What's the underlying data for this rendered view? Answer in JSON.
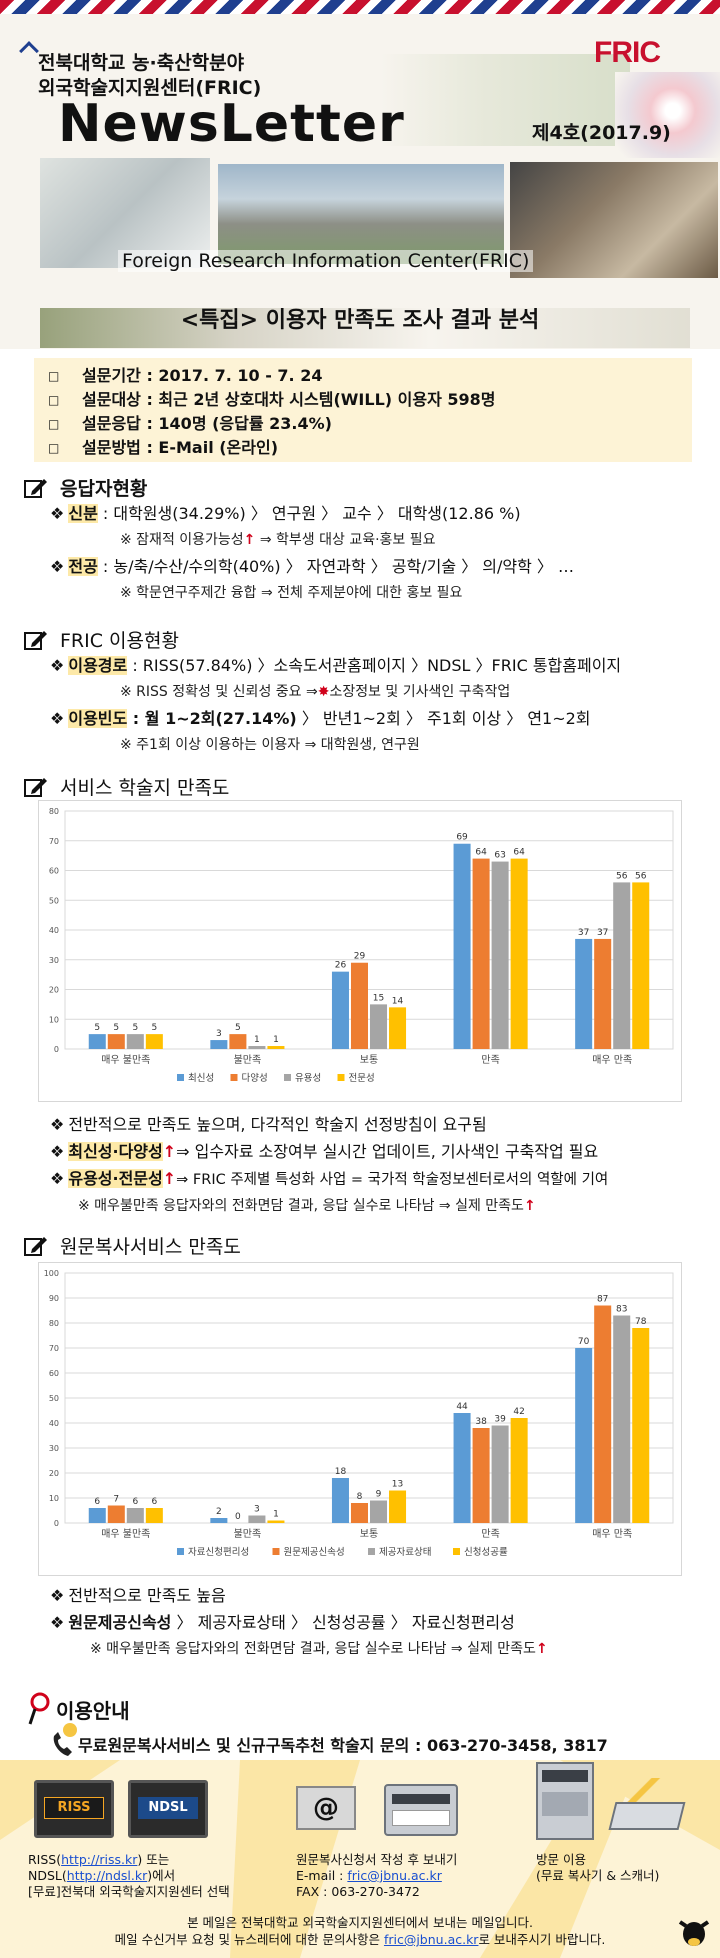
{
  "header": {
    "org_line1": "전북대학교 농·축산학분야",
    "org_line2": "외국학술지지원센터(FRIC)",
    "title": "NewsLetter",
    "issue": "제4호(2017.9)",
    "logo": "FRIC",
    "banner_en": "Foreign Research Information Center(FRIC)",
    "feature_title": "<특집> 이용자 만족도 조사 결과 분석"
  },
  "survey": {
    "items": [
      "설문기간 : 2017. 7. 10 - 7. 24",
      "설문대상 : 최근 2년 상호대차 시스템(WILL) 이용자 598명",
      "설문응답 : 140명 (응답률 23.4%)",
      "설문방법 : E-Mail (온라인)"
    ]
  },
  "respondents": {
    "title": "응답자현황",
    "r1_label": "신분",
    "r1_text": " : 대학원생(34.29%) 〉 연구원 〉 교수 〉 대학생(12.86 %)",
    "r1_note_a": "※ 잠재적 이용가능성",
    "r1_note_arrow": "↑",
    "r1_note_b": " ⇒ 학부생 대상 교육·홍보 필요",
    "r2_label": "전공",
    "r2_text": " : 농/축/수산/수의학(40%) 〉 자연과학 〉 공학/기술 〉 의/약학 〉 …",
    "r2_note": "※ 학문연구주제간 융합 ⇒ 전체 주제분야에 대한 홍보 필요"
  },
  "usage": {
    "title": "FRIC 이용현황",
    "u1_label": "이용경로",
    "u1_text": " : RISS(57.84%) 〉소속도서관홈페이지 〉NDSL 〉FRIC 통합홈페이지",
    "u1_note_a": "※ RISS 정확성 및 신뢰성 중요 ⇒",
    "u1_note_b": "소장정보 및 기사색인 구축작업",
    "u2_label": "이용빈도",
    "u2_text_bold": " : 월 1~2회(27.14%)",
    "u2_text": " 〉 반년1~2회 〉 주1회 이상 〉 연1~2회",
    "u2_note": "※ 주1회 이상 이용하는 이용자 ⇒ 대학원생, 연구원"
  },
  "journal_section": {
    "title": "서비스 학술지 만족도",
    "p1": "전반적으로 만족도 높으며, 다각적인 학술지 선정방침이 요구됨",
    "p2_label": "최신성·다양성",
    "p2_text": "⇒ 입수자료 소장여부 실시간 업데이트, 기사색인 구축작업 필요",
    "p3_label": "유용성·전문성",
    "p3_text": "⇒ FRIC 주제별 특성화 사업 = 국가적 학술정보센터로서의 역할에 기여",
    "p3_note": "※ 매우불만족 응답자와의 전화면담 결과, 응답 실수로 나타남 ⇒ 실제 만족도",
    "arrow": "↑"
  },
  "copy_section": {
    "title": "원문복사서비스 만족도",
    "p1": "전반적으로 만족도 높음",
    "p2_label": "원문제공신속성",
    "p2_text": " 〉 제공자료상태 〉 신청성공률 〉 자료신청편리성",
    "p2_note": "※ 매우불만족 응답자와의 전화면담 결과, 응답 실수로 나타남 ⇒ 실제 만족도",
    "arrow": "↑"
  },
  "chart_data": [
    {
      "type": "bar",
      "categories": [
        "매우 불만족",
        "불만족",
        "보통",
        "만족",
        "매우 만족"
      ],
      "series": [
        {
          "name": "최신성",
          "values": [
            5,
            3,
            26,
            69,
            37
          ],
          "color": "#5b9bd5"
        },
        {
          "name": "다양성",
          "values": [
            5,
            5,
            29,
            64,
            37
          ],
          "color": "#ed7d31"
        },
        {
          "name": "유용성",
          "values": [
            5,
            1,
            15,
            63,
            56
          ],
          "color": "#a5a5a5"
        },
        {
          "name": "전문성",
          "values": [
            5,
            1,
            14,
            64,
            56
          ],
          "color": "#ffc000"
        }
      ],
      "ylim": [
        0,
        80
      ],
      "yticks": [
        0,
        10,
        20,
        30,
        40,
        50,
        60,
        70,
        80
      ],
      "grid": true,
      "legend": "bottom"
    },
    {
      "type": "bar",
      "categories": [
        "매우 불만족",
        "불만족",
        "보통",
        "만족",
        "매우 만족"
      ],
      "series": [
        {
          "name": "자료신청편리성",
          "values": [
            6,
            2,
            18,
            44,
            70
          ],
          "color": "#5b9bd5"
        },
        {
          "name": "원문제공신속성",
          "values": [
            7,
            0,
            8,
            38,
            87
          ],
          "color": "#ed7d31"
        },
        {
          "name": "제공자료상태",
          "values": [
            6,
            3,
            9,
            39,
            83
          ],
          "color": "#a5a5a5"
        },
        {
          "name": "신청성공률",
          "values": [
            6,
            1,
            13,
            42,
            78
          ],
          "color": "#ffc000"
        }
      ],
      "ylim": [
        0,
        100
      ],
      "yticks": [
        0,
        10,
        20,
        30,
        40,
        50,
        60,
        70,
        80,
        90,
        100
      ],
      "grid": true,
      "legend": "bottom"
    }
  ],
  "guide": {
    "title": "이용안내",
    "contact": "무료원문복사서비스 및 신규구독추천 학술지 문의 : 063-270-3458, 3817"
  },
  "footer": {
    "col1_l1a": "RISS(",
    "col1_riss": "http://riss.kr",
    "col1_l1b": ") 또는",
    "col1_l2a": "NDSL(",
    "col1_ndsl": "http://ndsl.kr",
    "col1_l2b": ")에서",
    "col1_l3": "[무료]전북대 외국학술지지원센터 선택",
    "col2_l1": "원문복사신청서 작성 후 보내기",
    "col2_l2a": "E-mail : ",
    "col2_email": "fric@jbnu.ac.kr",
    "col2_l3": "FAX : 063-270-3472",
    "col3_l1": "방문 이용",
    "col3_l2": "(무료 복사기 & 스캐너)",
    "riss_logo": "RISS",
    "ndsl_logo": "NDSL",
    "note1": "본 메일은 전북대학교 외국학술지지원센터에서 보내는 메일입니다.",
    "note2a": "메일 수신거부 요청 및 뉴스레터에 대한 문의사항은 ",
    "note2_email": "fric@jbnu.ac.kr",
    "note2b": "로 보내주시기 바랍니다."
  }
}
